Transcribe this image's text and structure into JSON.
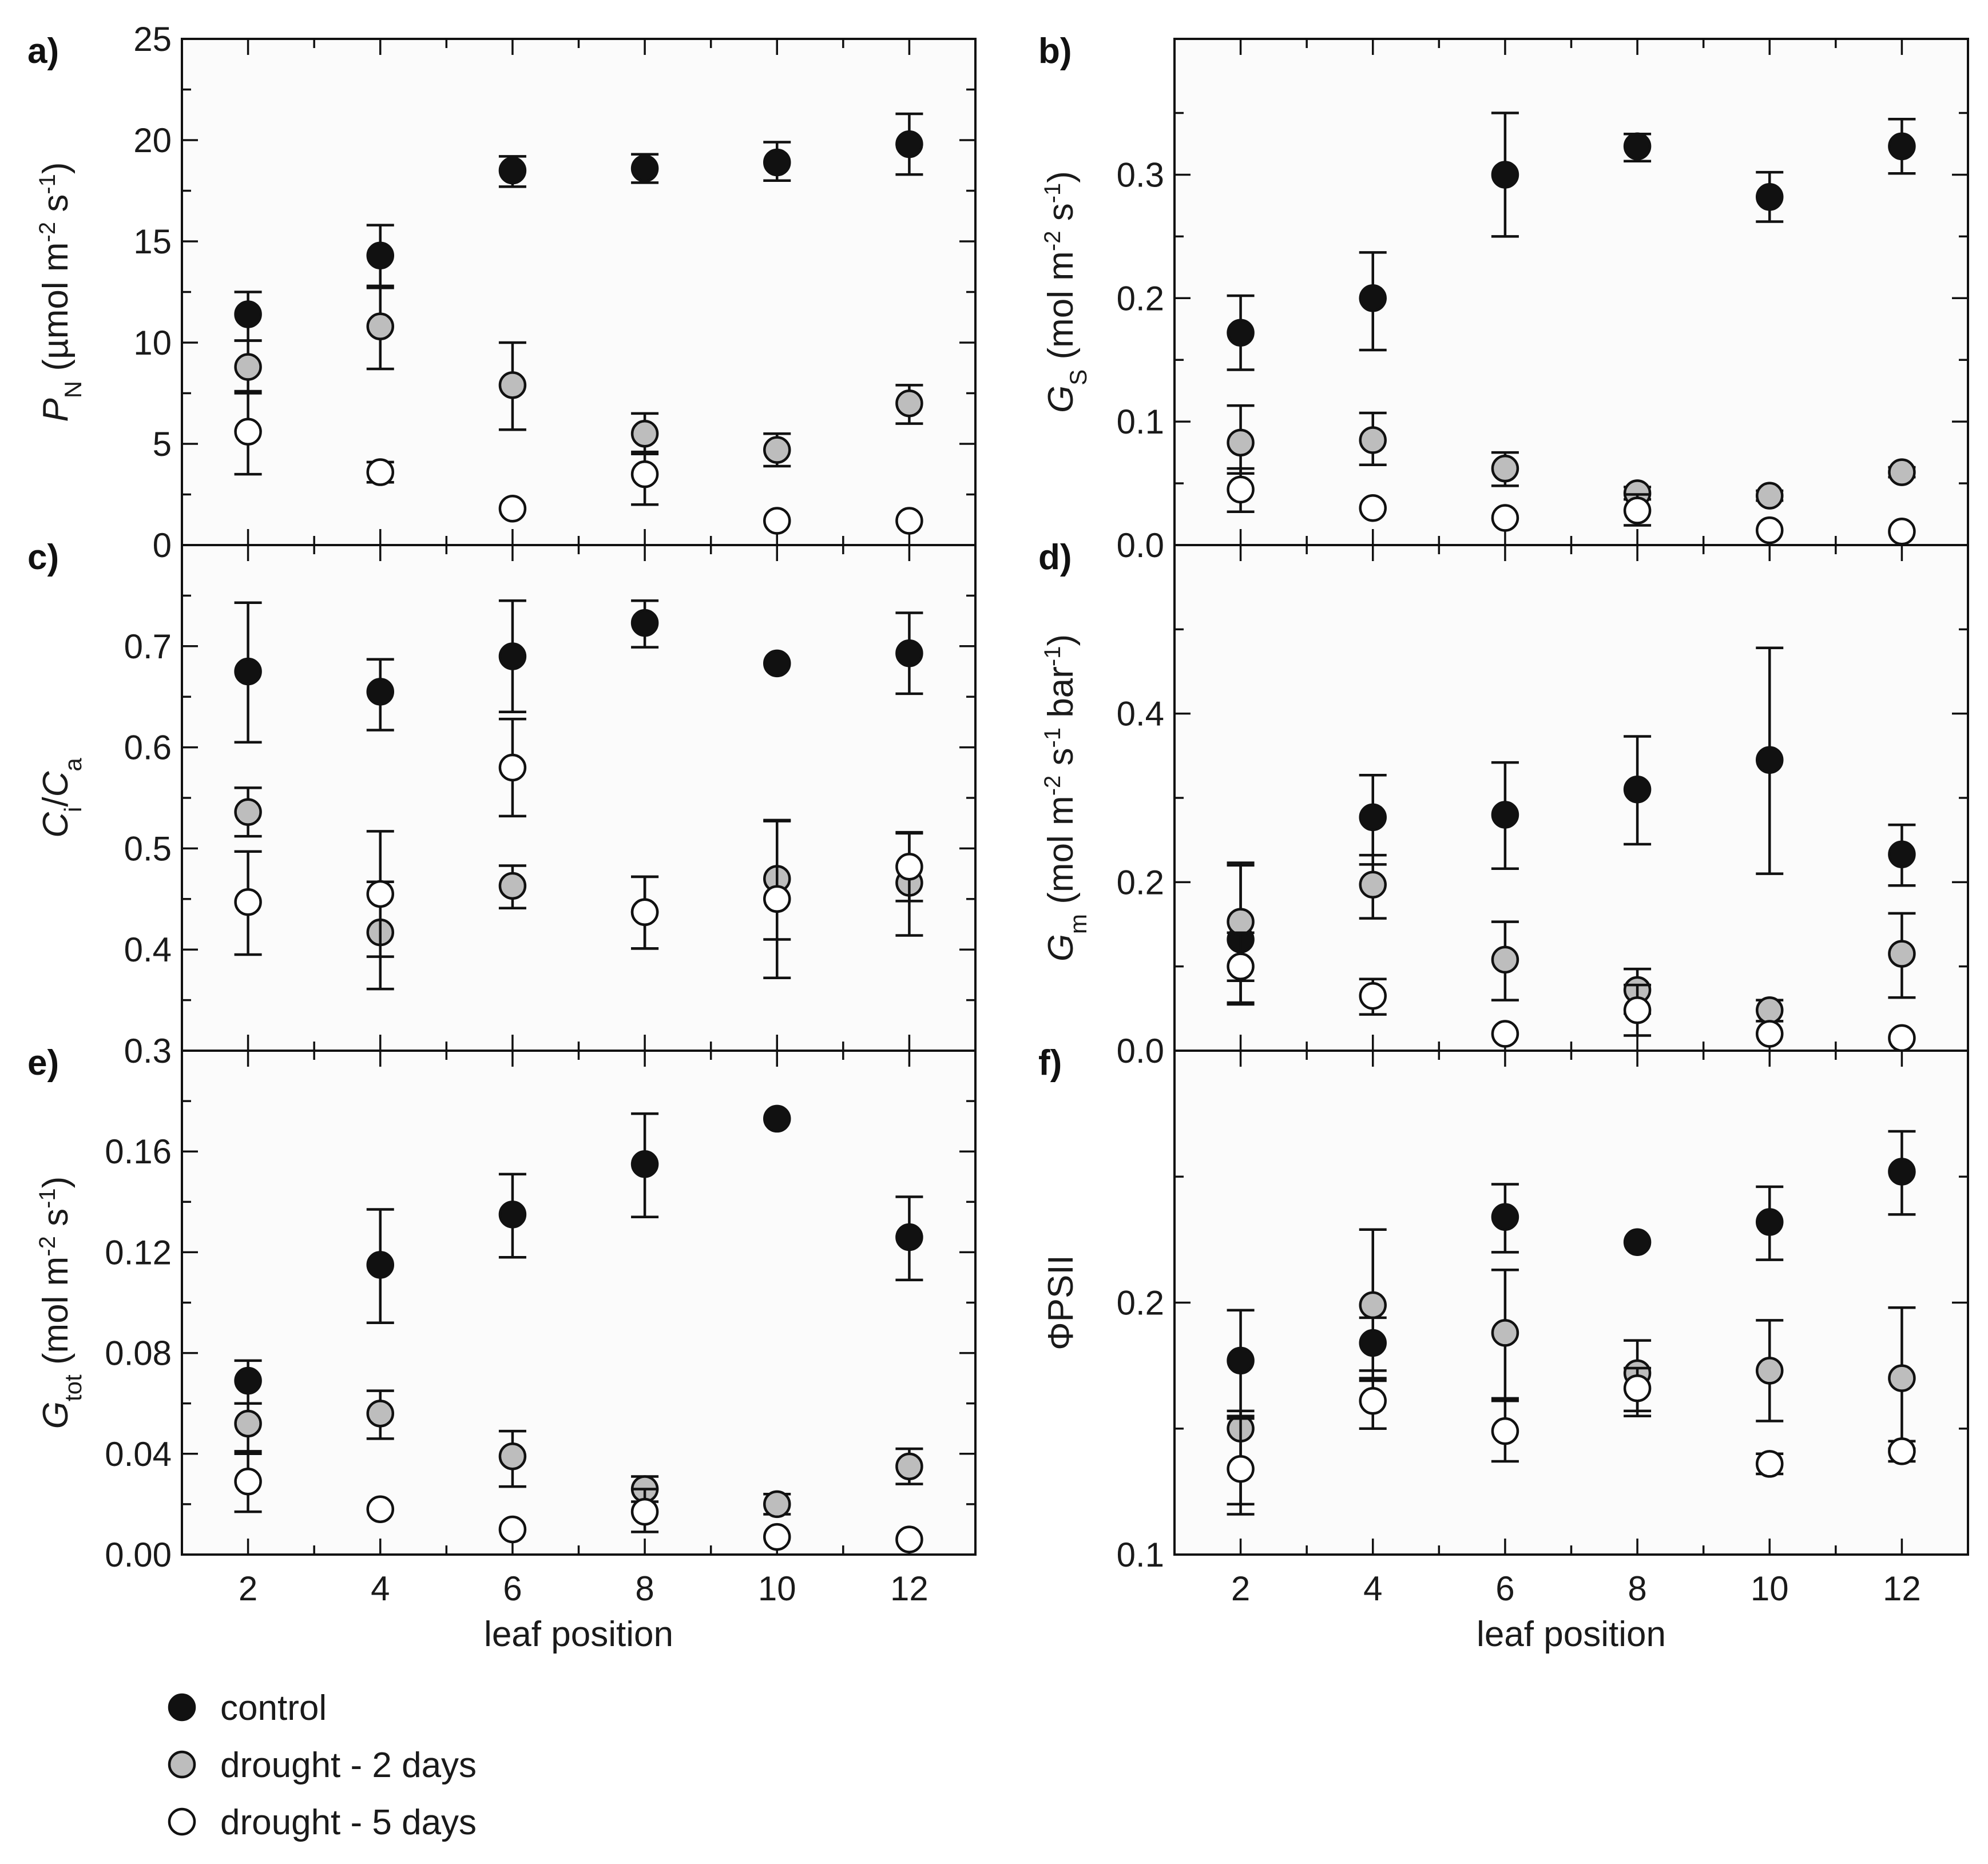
{
  "chart_data": [
    {
      "type": "scatter",
      "panel_label": "a)",
      "ylabel_main": "P",
      "ylabel_sub": "N",
      "ylabel_unit": "(µmol m",
      "ylabel_parts": [
        "-2",
        " s",
        "-1",
        ")"
      ],
      "ylim": [
        0,
        25
      ],
      "yticks": [
        0,
        5,
        10,
        15,
        20,
        25
      ],
      "ytick_labels": [
        "0",
        "5",
        "10",
        "15",
        "20",
        "25"
      ],
      "x": [
        2,
        4,
        6,
        8,
        10,
        12
      ],
      "series": [
        {
          "name": "control",
          "values": [
            11.4,
            14.3,
            18.5,
            18.6,
            18.9,
            19.8
          ],
          "err_up": [
            1.1,
            1.5,
            0.7,
            0.7,
            1.0,
            1.5
          ],
          "err_dn": [
            1.3,
            1.6,
            0.8,
            0.7,
            0.9,
            1.5
          ]
        },
        {
          "name": "drought - 2 days",
          "values": [
            8.8,
            10.8,
            7.9,
            5.5,
            4.7,
            7.0
          ],
          "err_up": [
            1.3,
            2.0,
            2.1,
            1.0,
            0.8,
            0.9
          ],
          "err_dn": [
            1.3,
            2.1,
            2.2,
            1.0,
            0.8,
            1.0
          ]
        },
        {
          "name": "drought - 5 days",
          "values": [
            5.6,
            3.6,
            1.8,
            3.5,
            1.2,
            1.2
          ],
          "err_up": [
            2.0,
            0.5,
            0,
            1.1,
            0,
            0
          ],
          "err_dn": [
            2.1,
            0.5,
            0,
            1.5,
            0,
            0
          ]
        }
      ]
    },
    {
      "type": "scatter",
      "panel_label": "b)",
      "ylabel_main": "G",
      "ylabel_sub": "S",
      "ylabel_unit": "(mol m",
      "ylabel_parts": [
        "-2",
        " s",
        "-1",
        ")"
      ],
      "ylim": [
        0,
        0.41
      ],
      "yticks": [
        0,
        0.1,
        0.2,
        0.3
      ],
      "ytick_labels": [
        "0.0",
        "0.1",
        "0.2",
        "0.3"
      ],
      "x": [
        2,
        4,
        6,
        8,
        10,
        12
      ],
      "series": [
        {
          "name": "control",
          "values": [
            0.172,
            0.2,
            0.3,
            0.323,
            0.282,
            0.323
          ],
          "err_up": [
            0.03,
            0.037,
            0.05,
            0.01,
            0.02,
            0.022
          ],
          "err_dn": [
            0.03,
            0.042,
            0.05,
            0.012,
            0.02,
            0.022
          ]
        },
        {
          "name": "drought - 2 days",
          "values": [
            0.083,
            0.085,
            0.062,
            0.042,
            0.04,
            0.059
          ],
          "err_up": [
            0.03,
            0.022,
            0.013,
            0.005,
            0.004,
            0.004
          ],
          "err_dn": [
            0.025,
            0.02,
            0.014,
            0.005,
            0.004,
            0.004
          ]
        },
        {
          "name": "drought - 5 days",
          "values": [
            0.045,
            0.03,
            0.022,
            0.028,
            0.012,
            0.011
          ],
          "err_up": [
            0.017,
            0,
            0,
            0.013,
            0,
            0
          ],
          "err_dn": [
            0.018,
            0,
            0,
            0.012,
            0,
            0
          ]
        }
      ]
    },
    {
      "type": "scatter",
      "panel_label": "c)",
      "ylabel_ci": "C",
      "ylabel_ci_sub": "i",
      "ylabel_slash": "/",
      "ylabel_ca": "C",
      "ylabel_ca_sub": "a",
      "ylim": [
        0.3,
        0.8
      ],
      "yticks": [
        0.3,
        0.4,
        0.5,
        0.6,
        0.7
      ],
      "ytick_labels": [
        "0.3",
        "0.4",
        "0.5",
        "0.6",
        "0.7"
      ],
      "x": [
        2,
        4,
        6,
        8,
        10,
        12
      ],
      "series": [
        {
          "name": "control",
          "values": [
            0.675,
            0.655,
            0.69,
            0.723,
            0.683,
            0.693
          ],
          "err_up": [
            0.068,
            0.032,
            0.055,
            0.022,
            0,
            0.04
          ],
          "err_dn": [
            0.07,
            0.038,
            0.055,
            0.024,
            0,
            0.04
          ]
        },
        {
          "name": "drought - 2 days",
          "values": [
            0.536,
            0.417,
            0.463,
            0.437,
            0.47,
            0.466
          ],
          "err_up": [
            0.024,
            0.05,
            0.02,
            0.035,
            0.057,
            0.05
          ],
          "err_dn": [
            0.024,
            0.056,
            0.022,
            0.036,
            0.06,
            0.052
          ]
        },
        {
          "name": "drought - 5 days",
          "values": [
            0.447,
            0.455,
            0.58,
            0.437,
            0.45,
            0.482
          ],
          "err_up": [
            0.05,
            0.062,
            0.048,
            0.035,
            0.078,
            0.033
          ],
          "err_dn": [
            0.052,
            0.062,
            0.048,
            0.036,
            0.078,
            0.034
          ]
        }
      ]
    },
    {
      "type": "scatter",
      "panel_label": "d)",
      "ylabel_main": "G",
      "ylabel_sub": "m",
      "ylabel_unit": "(mol m",
      "ylabel_parts": [
        "-2",
        " s",
        "-1",
        " bar",
        "-1",
        ")"
      ],
      "ylim": [
        0,
        0.6
      ],
      "yticks": [
        0,
        0.2,
        0.4
      ],
      "ytick_labels": [
        "0.0",
        "0.2",
        "0.4"
      ],
      "x": [
        2,
        4,
        6,
        8,
        10,
        12
      ],
      "series": [
        {
          "name": "control",
          "values": [
            0.132,
            0.277,
            0.28,
            0.31,
            0.345,
            0.233
          ],
          "err_up": [
            0.088,
            0.05,
            0.062,
            0.063,
            0.133,
            0.035
          ],
          "err_dn": [
            0.075,
            0.056,
            0.064,
            0.065,
            0.135,
            0.037
          ]
        },
        {
          "name": "drought - 2 days",
          "values": [
            0.153,
            0.197,
            0.108,
            0.072,
            0.048,
            0.115
          ],
          "err_up": [
            0.07,
            0.035,
            0.045,
            0.025,
            0.012,
            0.048
          ],
          "err_dn": [
            0.07,
            0.04,
            0.048,
            0.028,
            0.013,
            0.052
          ]
        },
        {
          "name": "drought - 5 days",
          "values": [
            0.1,
            0.065,
            0.02,
            0.048,
            0.02,
            0.015
          ],
          "err_up": [
            0.04,
            0.02,
            0,
            0.03,
            0,
            0
          ],
          "err_dn": [
            0.045,
            0.022,
            0,
            0.03,
            0,
            0
          ]
        }
      ]
    },
    {
      "type": "scatter",
      "panel_label": "e)",
      "ylabel_main": "G",
      "ylabel_sub": "tot",
      "ylabel_unit": "(mol m",
      "ylabel_parts": [
        "-2",
        " s",
        "-1",
        ")"
      ],
      "ylim": [
        0,
        0.2
      ],
      "yticks": [
        0,
        0.04,
        0.08,
        0.12,
        0.16
      ],
      "ytick_labels": [
        "0.00",
        "0.04",
        "0.08",
        "0.12",
        "0.16"
      ],
      "xticks": [
        2,
        4,
        6,
        8,
        10,
        12
      ],
      "xtick_labels": [
        "2",
        "4",
        "6",
        "8",
        "10",
        "12"
      ],
      "xlabel": "leaf position",
      "x": [
        2,
        4,
        6,
        8,
        10,
        12
      ],
      "series": [
        {
          "name": "control",
          "values": [
            0.069,
            0.115,
            0.135,
            0.155,
            0.173,
            0.126
          ],
          "err_up": [
            0.008,
            0.022,
            0.016,
            0.02,
            0,
            0.016
          ],
          "err_dn": [
            0.009,
            0.023,
            0.017,
            0.021,
            0,
            0.017
          ]
        },
        {
          "name": "drought - 2 days",
          "values": [
            0.052,
            0.056,
            0.039,
            0.026,
            0.02,
            0.035
          ],
          "err_up": [
            0.008,
            0.009,
            0.01,
            0.005,
            0.004,
            0.007
          ],
          "err_dn": [
            0.012,
            0.01,
            0.012,
            0.005,
            0.004,
            0.007
          ]
        },
        {
          "name": "drought - 5 days",
          "values": [
            0.029,
            0.018,
            0.01,
            0.017,
            0.007,
            0.006
          ],
          "err_up": [
            0.012,
            0,
            0,
            0.009,
            0,
            0
          ],
          "err_dn": [
            0.012,
            0,
            0,
            0.008,
            0,
            0
          ]
        }
      ]
    },
    {
      "type": "scatter",
      "panel_label": "f)",
      "ylabel_main": "ΦPSII",
      "ylim": [
        0.1,
        0.3
      ],
      "yticks": [
        0.1,
        0.2
      ],
      "ytick_labels": [
        "0.1",
        "0.2"
      ],
      "xticks": [
        2,
        4,
        6,
        8,
        10,
        12
      ],
      "xtick_labels": [
        "2",
        "4",
        "6",
        "8",
        "10",
        "12"
      ],
      "xlabel": "leaf position",
      "x": [
        2,
        4,
        6,
        8,
        10,
        12
      ],
      "series": [
        {
          "name": "control",
          "values": [
            0.177,
            0.184,
            0.234,
            0.224,
            0.232,
            0.252
          ],
          "err_up": [
            0.02,
            0.01,
            0.013,
            0,
            0.014,
            0.016
          ],
          "err_dn": [
            0.022,
            0.014,
            0.014,
            0,
            0.015,
            0.017
          ]
        },
        {
          "name": "drought - 2 days",
          "values": [
            0.15,
            0.199,
            0.188,
            0.172,
            0.173,
            0.17
          ],
          "err_up": [
            0.007,
            0.03,
            0.025,
            0.013,
            0.02,
            0.028
          ],
          "err_dn": [
            0.03,
            0.03,
            0.026,
            0.015,
            0.02,
            0.028
          ]
        },
        {
          "name": "drought - 5 days",
          "values": [
            0.134,
            0.161,
            0.149,
            0.166,
            0.136,
            0.141
          ],
          "err_up": [
            0.02,
            0.012,
            0.012,
            0.008,
            0.004,
            0.004
          ],
          "err_dn": [
            0.018,
            0.011,
            0.012,
            0.011,
            0.004,
            0.004
          ]
        }
      ]
    }
  ],
  "legend": {
    "items": [
      {
        "label": "control",
        "color": "#111111"
      },
      {
        "label": "drought - 2 days",
        "color": "#bdbdbd"
      },
      {
        "label": "drought - 5 days",
        "color": "#ffffff"
      }
    ]
  },
  "colors": {
    "control": "#111111",
    "drought_2": "#bdbdbd",
    "drought_5": "#ffffff"
  }
}
